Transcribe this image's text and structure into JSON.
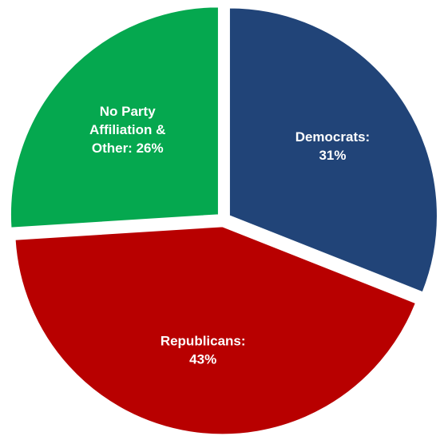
{
  "chart_data": {
    "type": "pie",
    "title": "",
    "start_angle_deg": 0,
    "direction": "clockwise",
    "exploded": true,
    "slices": [
      {
        "key": "democrats",
        "label_lines": [
          "Democrats:",
          "31%"
        ],
        "category": "Democrats",
        "value": 31,
        "color": "#214478"
      },
      {
        "key": "republicans",
        "label_lines": [
          "Republicans:",
          "43%"
        ],
        "category": "Republicans",
        "value": 43,
        "color": "#b80000"
      },
      {
        "key": "other",
        "label_lines": [
          "No Party",
          "Affiliation &",
          "Other:  26%"
        ],
        "category": "No Party Affiliation & Other",
        "value": 26,
        "color": "#05a84f"
      }
    ]
  }
}
